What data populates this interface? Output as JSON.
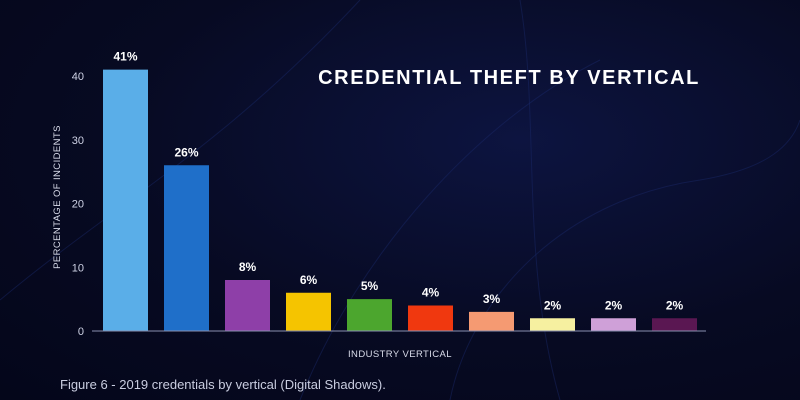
{
  "chart_data": {
    "type": "bar",
    "title": "CREDENTIAL THEFT BY VERTICAL",
    "xlabel": "INDUSTRY VERTICAL",
    "ylabel": "PERCENTAGE OF INCIDENTS",
    "ylim": [
      0,
      45
    ],
    "yticks": [
      0,
      10,
      20,
      30,
      40
    ],
    "grid": false,
    "values": [
      41,
      26,
      8,
      6,
      5,
      4,
      3,
      2,
      2,
      2
    ],
    "value_labels": [
      "41%",
      "26%",
      "8%",
      "6%",
      "5%",
      "4%",
      "3%",
      "2%",
      "2%",
      "2%"
    ],
    "colors": [
      "#5aaee8",
      "#1f6fc9",
      "#8e3fa8",
      "#f5c400",
      "#4ca62e",
      "#f0380f",
      "#f59a72",
      "#f6f0a0",
      "#cfa0d8",
      "#5a1752"
    ]
  },
  "caption": "Figure 6 - 2019 credentials by vertical (Digital Shadows)."
}
